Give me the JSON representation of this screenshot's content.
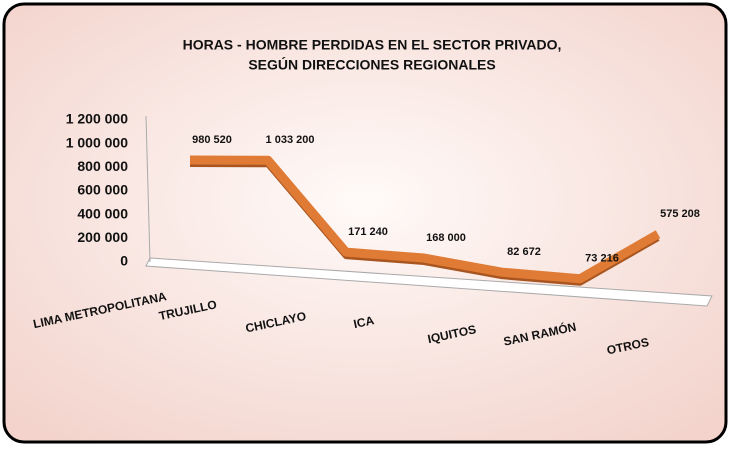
{
  "chart_data": {
    "type": "line3d",
    "title": "HORAS - HOMBRE PERDIDAS EN EL SECTOR PRIVADO,",
    "subtitle": "SEGÚN DIRECCIONES REGIONALES",
    "categories": [
      "LIMA METROPOLITANA",
      "TRUJILLO",
      "CHICLAYO",
      "ICA",
      "IQUITOS",
      "SAN RAMÓN",
      "OTROS"
    ],
    "values": [
      980520,
      1033200,
      171240,
      168000,
      82672,
      73216,
      575208
    ],
    "value_labels": [
      "980 520",
      "1 033 200",
      "171 240",
      "168 000",
      "82 672",
      "73 216",
      "575 208"
    ],
    "color": "#e07b35",
    "ylim": [
      0,
      1200000
    ],
    "yticks": [
      0,
      {
        "value": 200000,
        "label": "200 000"
      },
      {
        "value": 400000,
        "label": "400 000"
      },
      {
        "value": 600000,
        "label": "600 000"
      },
      {
        "value": 800000,
        "label": "800 000"
      },
      {
        "value": 1000000,
        "label": "1 000 000"
      },
      {
        "value": 1200000,
        "label": "1 200 000"
      }
    ]
  }
}
